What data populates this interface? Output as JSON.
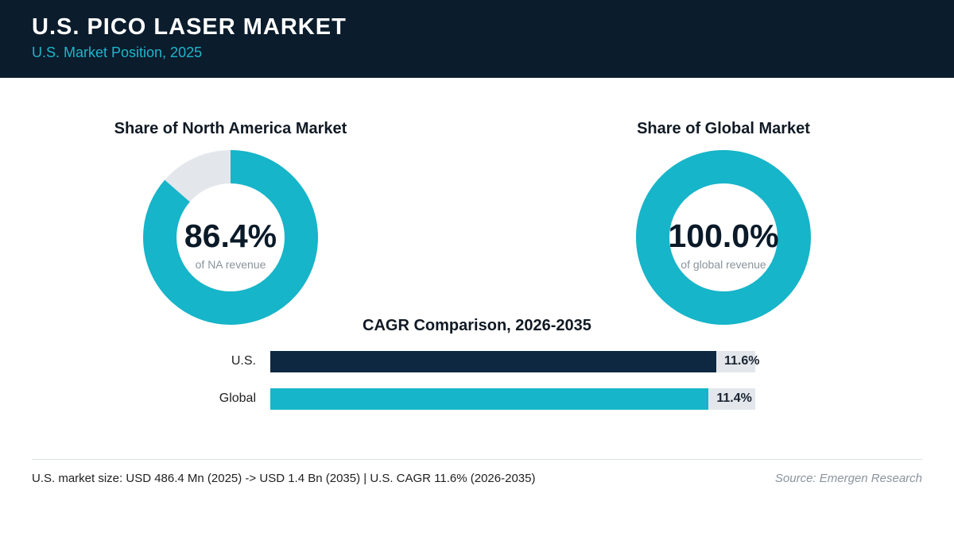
{
  "header": {
    "title": "U.S. PICO LASER MARKET",
    "subtitle": "U.S. Market Position, 2025"
  },
  "colors": {
    "header_bg": "#0b1c2c",
    "accent": "#16b5c9",
    "dark_bar": "#0e2841",
    "track": "#e3e7ec"
  },
  "chart_data": [
    {
      "type": "pie",
      "title": "Share of North America Market",
      "value": 86.4,
      "value_label": "86.4%",
      "caption": "of NA revenue"
    },
    {
      "type": "pie",
      "title": "Share of Global Market",
      "value": 100.0,
      "value_label": "100.0%",
      "caption": "of global revenue"
    },
    {
      "type": "bar",
      "title": "CAGR Comparison, 2026-2035",
      "categories": [
        "U.S.",
        "Global"
      ],
      "values": [
        11.6,
        11.4
      ],
      "value_labels": [
        "11.6%",
        "11.4%"
      ],
      "colors": [
        "#0e2841",
        "#16b5c9"
      ]
    }
  ],
  "footer": {
    "summary": "U.S. market size: USD 486.4 Mn (2025) -> USD 1.4 Bn (2035)  |  U.S. CAGR 11.6% (2026-2035)",
    "source": "Source: Emergen Research"
  }
}
